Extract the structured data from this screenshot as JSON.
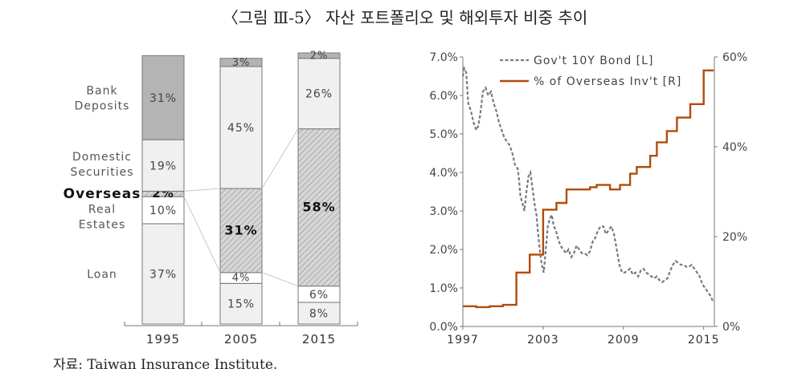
{
  "title": "〈그림 Ⅲ-5〉 자산 포트폴리오 및 해외투자 비중 추이",
  "source": "자료: Taiwan Insurance Institute.",
  "colors": {
    "bank": "#b4b4b4",
    "light": "#f0f0f0",
    "overseas": "#d6d6d6",
    "real": "#ffffff",
    "bond": "#7a7a7a",
    "overseas_line": "#b24b08",
    "axis": "#777777",
    "label": "#555555"
  },
  "chart_data": [
    {
      "type": "bar",
      "stacked": true,
      "title": "",
      "categories": [
        "1995",
        "2005",
        "2015"
      ],
      "stack_order": [
        "Loan",
        "Real Estates",
        "Overseas",
        "Domestic Securities",
        "Bank Deposits"
      ],
      "category_labels": [
        {
          "key": "bank",
          "lines": [
            "Bank",
            "Deposits"
          ]
        },
        {
          "key": "domestic",
          "lines": [
            "Domestic",
            "Securities"
          ]
        },
        {
          "key": "overseas",
          "lines": [
            "Overseas"
          ]
        },
        {
          "key": "real",
          "lines": [
            "Real",
            "Estates"
          ]
        },
        {
          "key": "loan",
          "lines": [
            "Loan"
          ]
        }
      ],
      "series": [
        {
          "name": "Loan",
          "values": [
            37,
            15,
            8
          ],
          "labels": [
            "37%",
            "15%",
            "8%"
          ]
        },
        {
          "name": "Real Estates",
          "values": [
            10,
            4,
            6
          ],
          "labels": [
            "10%",
            "4%",
            "6%"
          ]
        },
        {
          "name": "Overseas",
          "values": [
            2,
            31,
            58
          ],
          "labels": [
            "2%",
            "31%",
            "58%"
          ]
        },
        {
          "name": "Domestic Securities",
          "values": [
            19,
            45,
            26
          ],
          "labels": [
            "19%",
            "45%",
            "26%"
          ]
        },
        {
          "name": "Bank Deposits",
          "values": [
            31,
            3,
            2
          ],
          "labels": [
            "31%",
            "3%",
            "2%"
          ]
        }
      ]
    },
    {
      "type": "line",
      "title": "",
      "x_ticks": [
        "1997",
        "2003",
        "2009",
        "2015"
      ],
      "xlim": [
        1997,
        2015.8
      ],
      "y_left": {
        "ylim": [
          0,
          7
        ],
        "ticks": [
          "0.0%",
          "1.0%",
          "2.0%",
          "3.0%",
          "4.0%",
          "5.0%",
          "6.0%",
          "7.0%"
        ]
      },
      "y_right": {
        "ylim": [
          0,
          60
        ],
        "ticks": [
          "0%",
          "20%",
          "40%",
          "60%"
        ]
      },
      "legend": "top",
      "series": [
        {
          "name": "Gov't 10Y Bond [L]",
          "axis": "left",
          "style": "dashed",
          "x": [
            1997.0,
            1997.1,
            1997.25,
            1997.4,
            1997.6,
            1997.8,
            1998.0,
            1998.15,
            1998.3,
            1998.5,
            1998.7,
            1998.9,
            1999.1,
            1999.3,
            1999.5,
            1999.7,
            1999.9,
            2000.1,
            2000.3,
            2000.5,
            2000.7,
            2000.9,
            2001.1,
            2001.2,
            2001.3,
            2001.45,
            2001.6,
            2001.75,
            2001.9,
            2002.05,
            2002.2,
            2002.35,
            2002.5,
            2002.6,
            2002.75,
            2002.9,
            2003.05,
            2003.2,
            2003.35,
            2003.5,
            2003.65,
            2003.8,
            2003.95,
            2004.1,
            2004.3,
            2004.5,
            2004.7,
            2004.9,
            2005.1,
            2005.3,
            2005.5,
            2005.7,
            2005.9,
            2006.1,
            2006.3,
            2006.5,
            2006.7,
            2006.9,
            2007.1,
            2007.3,
            2007.5,
            2007.7,
            2007.9,
            2008.1,
            2008.3,
            2008.5,
            2008.7,
            2008.9,
            2009.1,
            2009.3,
            2009.5,
            2009.7,
            2009.9,
            2010.1,
            2010.3,
            2010.5,
            2010.7,
            2010.9,
            2011.1,
            2011.3,
            2011.5,
            2011.7,
            2011.9,
            2012.1,
            2012.3,
            2012.5,
            2012.7,
            2012.9,
            2013.1,
            2013.3,
            2013.5,
            2013.7,
            2013.9,
            2014.1,
            2014.3,
            2014.5,
            2014.7,
            2014.9,
            2015.1,
            2015.3,
            2015.5,
            2015.7
          ],
          "y": [
            6.5,
            6.7,
            6.6,
            5.8,
            5.6,
            5.3,
            5.1,
            5.2,
            5.5,
            6.1,
            6.2,
            6.0,
            6.1,
            5.8,
            5.6,
            5.3,
            5.1,
            4.9,
            4.8,
            4.7,
            4.5,
            4.2,
            4.1,
            3.8,
            3.4,
            3.2,
            3.0,
            3.5,
            3.9,
            4.0,
            3.6,
            3.2,
            2.9,
            2.5,
            2.0,
            1.6,
            1.4,
            2.0,
            2.6,
            2.8,
            2.9,
            2.6,
            2.5,
            2.3,
            2.1,
            2.0,
            1.9,
            2.0,
            1.8,
            1.9,
            2.1,
            2.0,
            1.9,
            1.9,
            1.85,
            1.95,
            2.2,
            2.3,
            2.5,
            2.6,
            2.6,
            2.4,
            2.5,
            2.6,
            2.4,
            2.0,
            1.6,
            1.4,
            1.4,
            1.45,
            1.5,
            1.35,
            1.4,
            1.3,
            1.45,
            1.5,
            1.4,
            1.35,
            1.3,
            1.25,
            1.3,
            1.2,
            1.15,
            1.2,
            1.25,
            1.45,
            1.6,
            1.7,
            1.65,
            1.6,
            1.6,
            1.55,
            1.55,
            1.6,
            1.5,
            1.4,
            1.3,
            1.1,
            1.0,
            0.9,
            0.8,
            0.65
          ]
        },
        {
          "name": "% of Overseas Inv't [R]",
          "axis": "right",
          "style": "step",
          "x": [
            1997.0,
            1998.0,
            1999.0,
            2000.0,
            2001.0,
            2002.0,
            2002.5,
            2003.0,
            2004.0,
            2004.75,
            2005.5,
            2006.5,
            2007.0,
            2008.0,
            2008.75,
            2009.5,
            2010.0,
            2011.0,
            2011.5,
            2012.25,
            2013.0,
            2014.0,
            2015.0,
            2015.75
          ],
          "y": [
            4.5,
            4.3,
            4.5,
            4.8,
            12.0,
            16.0,
            16.0,
            26.0,
            27.5,
            30.5,
            30.5,
            31.0,
            31.5,
            30.5,
            31.5,
            34.0,
            35.5,
            38.0,
            41.0,
            43.5,
            46.5,
            49.5,
            57.0,
            57.0
          ]
        }
      ]
    }
  ]
}
